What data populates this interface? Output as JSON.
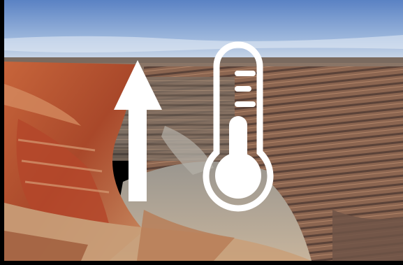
{
  "scene": {
    "description_icon_names": [
      "up-arrow-icon",
      "thermometer-icon"
    ],
    "colors": {
      "sky_top": "#5f86c6",
      "sky_bottom": "#c9d8ec",
      "rock_red": "#b8532f",
      "rock_tan": "#b48a63",
      "rock_gray": "#8f8a84",
      "icon_fill": "#ffffff",
      "border": "#000000"
    }
  }
}
